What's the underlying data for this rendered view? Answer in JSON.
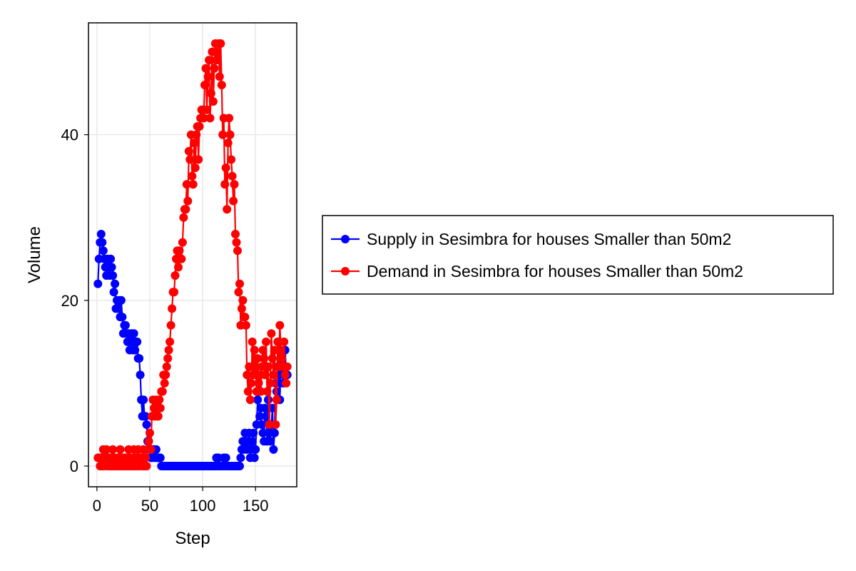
{
  "chart_data": {
    "type": "line",
    "title": "",
    "xlabel": "Step",
    "ylabel": "Volume",
    "xlim": [
      -8,
      189
    ],
    "ylim": [
      -2.5,
      53.5
    ],
    "xticks": [
      0,
      50,
      100,
      150
    ],
    "yticks": [
      0,
      20,
      40
    ],
    "grid": true,
    "legend": {
      "position": "right",
      "boxed": true
    },
    "markers": true,
    "series": [
      {
        "name": "Supply in Sesimbra for houses Smaller than 50m2",
        "color": "#0000ff",
        "x": [
          1,
          2,
          3,
          4,
          5,
          6,
          7,
          8,
          9,
          10,
          11,
          12,
          13,
          14,
          15,
          16,
          17,
          18,
          19,
          20,
          21,
          22,
          23,
          24,
          25,
          26,
          27,
          28,
          29,
          30,
          31,
          32,
          33,
          34,
          35,
          36,
          37,
          38,
          39,
          40,
          41,
          42,
          43,
          44,
          45,
          46,
          47,
          48,
          49,
          50,
          51,
          52,
          53,
          54,
          55,
          56,
          57,
          58,
          59,
          60,
          61,
          62,
          63,
          64,
          65,
          66,
          67,
          68,
          69,
          70,
          71,
          72,
          73,
          74,
          75,
          76,
          77,
          78,
          79,
          80,
          81,
          82,
          83,
          84,
          85,
          86,
          87,
          88,
          89,
          90,
          91,
          92,
          93,
          94,
          95,
          96,
          97,
          98,
          99,
          100,
          101,
          102,
          103,
          104,
          105,
          106,
          107,
          108,
          109,
          110,
          111,
          112,
          113,
          114,
          115,
          116,
          117,
          118,
          119,
          120,
          121,
          122,
          123,
          124,
          125,
          126,
          127,
          128,
          129,
          130,
          131,
          132,
          133,
          134,
          135,
          136,
          137,
          138,
          139,
          140,
          141,
          142,
          143,
          144,
          145,
          146,
          147,
          148,
          149,
          150,
          151,
          152,
          153,
          154,
          155,
          156,
          157,
          158,
          159,
          160,
          161,
          162,
          163,
          164,
          165,
          166,
          167,
          168,
          169,
          170,
          171,
          172,
          173,
          174,
          175,
          176,
          177,
          178,
          179,
          180
        ],
        "y": [
          22,
          25,
          27,
          28,
          27,
          26,
          25,
          24,
          23,
          25,
          24,
          23,
          25,
          24,
          23,
          21,
          22,
          19,
          20,
          19,
          20,
          18,
          20,
          18,
          16,
          17,
          17,
          16,
          15,
          16,
          14,
          15,
          16,
          14,
          16,
          14,
          15,
          15,
          13,
          13,
          11,
          8,
          6,
          8,
          6,
          6,
          5,
          3,
          3,
          2,
          1,
          1,
          2,
          2,
          1,
          2,
          1,
          1,
          1,
          1,
          0,
          0,
          0,
          0,
          0,
          0,
          0,
          0,
          0,
          0,
          0,
          0,
          0,
          0,
          0,
          0,
          0,
          0,
          0,
          0,
          0,
          0,
          0,
          0,
          0,
          0,
          0,
          0,
          0,
          0,
          0,
          0,
          0,
          0,
          0,
          0,
          0,
          0,
          0,
          0,
          0,
          0,
          0,
          0,
          0,
          0,
          0,
          0,
          0,
          0,
          0,
          0,
          1,
          0,
          1,
          0,
          0,
          0,
          0,
          1,
          0,
          1,
          0,
          0,
          0,
          0,
          0,
          0,
          0,
          0,
          0,
          0,
          0,
          0,
          0,
          1,
          2,
          3,
          2,
          4,
          3,
          2,
          3,
          4,
          1,
          2,
          3,
          4,
          1,
          2,
          5,
          8,
          9,
          6,
          7,
          5,
          4,
          3,
          7,
          6,
          3,
          8,
          4,
          3,
          5,
          7,
          2,
          4,
          10,
          9,
          12,
          11,
          8,
          13,
          12,
          10,
          11,
          14,
          11,
          11
        ]
      },
      {
        "name": "Demand in Sesimbra for houses Smaller than 50m2",
        "color": "#ff0000",
        "x": [
          1,
          2,
          3,
          4,
          5,
          6,
          7,
          8,
          9,
          10,
          11,
          12,
          13,
          14,
          15,
          16,
          17,
          18,
          19,
          20,
          21,
          22,
          23,
          24,
          25,
          26,
          27,
          28,
          29,
          30,
          31,
          32,
          33,
          34,
          35,
          36,
          37,
          38,
          39,
          40,
          41,
          42,
          43,
          44,
          45,
          46,
          47,
          48,
          49,
          50,
          51,
          52,
          53,
          54,
          55,
          56,
          57,
          58,
          59,
          60,
          61,
          62,
          63,
          64,
          65,
          66,
          67,
          68,
          69,
          70,
          71,
          72,
          73,
          74,
          75,
          76,
          77,
          78,
          79,
          80,
          81,
          82,
          83,
          84,
          85,
          86,
          87,
          88,
          89,
          90,
          91,
          92,
          93,
          94,
          95,
          96,
          97,
          98,
          99,
          100,
          101,
          102,
          103,
          104,
          105,
          106,
          107,
          108,
          109,
          110,
          111,
          112,
          113,
          114,
          115,
          116,
          117,
          118,
          119,
          120,
          121,
          122,
          123,
          124,
          125,
          126,
          127,
          128,
          129,
          130,
          131,
          132,
          133,
          134,
          135,
          136,
          137,
          138,
          139,
          140,
          141,
          142,
          143,
          144,
          145,
          146,
          147,
          148,
          149,
          150,
          151,
          152,
          153,
          154,
          155,
          156,
          157,
          158,
          159,
          160,
          161,
          162,
          163,
          164,
          165,
          166,
          167,
          168,
          169,
          170,
          171,
          172,
          173,
          174,
          175,
          176,
          177,
          178,
          179,
          180
        ],
        "y": [
          1,
          1,
          0,
          1,
          0,
          2,
          0,
          1,
          2,
          0,
          1,
          0,
          1,
          0,
          2,
          0,
          1,
          0,
          0,
          1,
          0,
          2,
          0,
          1,
          0,
          1,
          0,
          1,
          0,
          2,
          0,
          1,
          0,
          0,
          2,
          0,
          1,
          0,
          2,
          0,
          1,
          1,
          0,
          2,
          0,
          1,
          0,
          2,
          3,
          4,
          2,
          6,
          8,
          7,
          6,
          8,
          7,
          6,
          8,
          7,
          9,
          9,
          11,
          10,
          11,
          12,
          13,
          14,
          15,
          17,
          19,
          21,
          21,
          23,
          25,
          26,
          24,
          26,
          25,
          25,
          27,
          30,
          31,
          31,
          34,
          32,
          38,
          37,
          40,
          35,
          34,
          39,
          36,
          40,
          41,
          37,
          41,
          42,
          43,
          43,
          42,
          46,
          48,
          43,
          47,
          49,
          42,
          45,
          50,
          44,
          48,
          51,
          49,
          50,
          51,
          47,
          51,
          46,
          40,
          42,
          34,
          36,
          31,
          39,
          42,
          40,
          37,
          35,
          32,
          34,
          28,
          27,
          26,
          21,
          22,
          17,
          19,
          20,
          18,
          18,
          17,
          11,
          9,
          12,
          8,
          10,
          15,
          11,
          14,
          12,
          9,
          13,
          10,
          11,
          9,
          12,
          14,
          13,
          11,
          15,
          9,
          12,
          5,
          10,
          16,
          13,
          11,
          14,
          5,
          8,
          15,
          12,
          17,
          14,
          13,
          12,
          15,
          11,
          10,
          12
        ]
      }
    ]
  }
}
